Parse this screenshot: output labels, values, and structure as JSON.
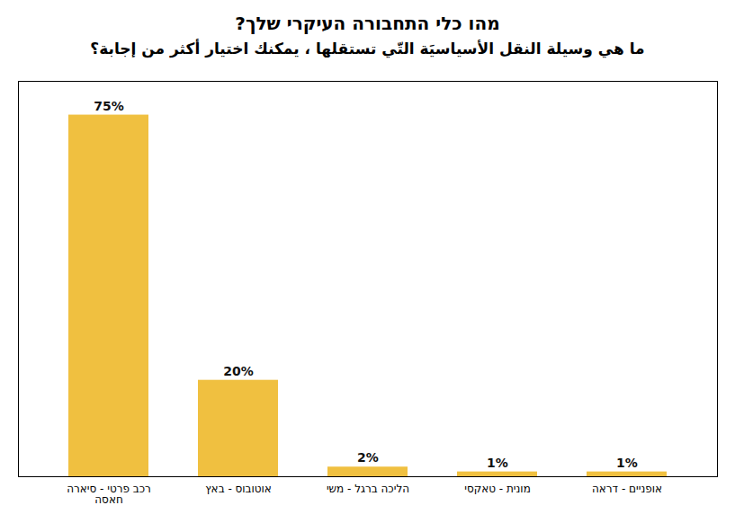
{
  "chart_data": {
    "type": "bar",
    "title": "מהו כלי התחבורה העיקרי שלך?",
    "subtitle": "ما هي وسيلة النقل الأسياسيَة التّي تستقلها ، يمكنك اختيار أكثر من إجابة؟",
    "categories": [
      "רכב פרטי - סיארה\nחאסה",
      "אוטובוס - באץ",
      "הליכה ברגל - משי",
      "מונית - טאקסי",
      "אופניים - דראה"
    ],
    "values": [
      75,
      20,
      2,
      1,
      1
    ],
    "value_labels": [
      "75%",
      "20%",
      "2%",
      "1%",
      "1%"
    ],
    "color": "#F0C040",
    "ylim": [
      0,
      82
    ],
    "data_labels": true,
    "tick_labels": "x"
  }
}
